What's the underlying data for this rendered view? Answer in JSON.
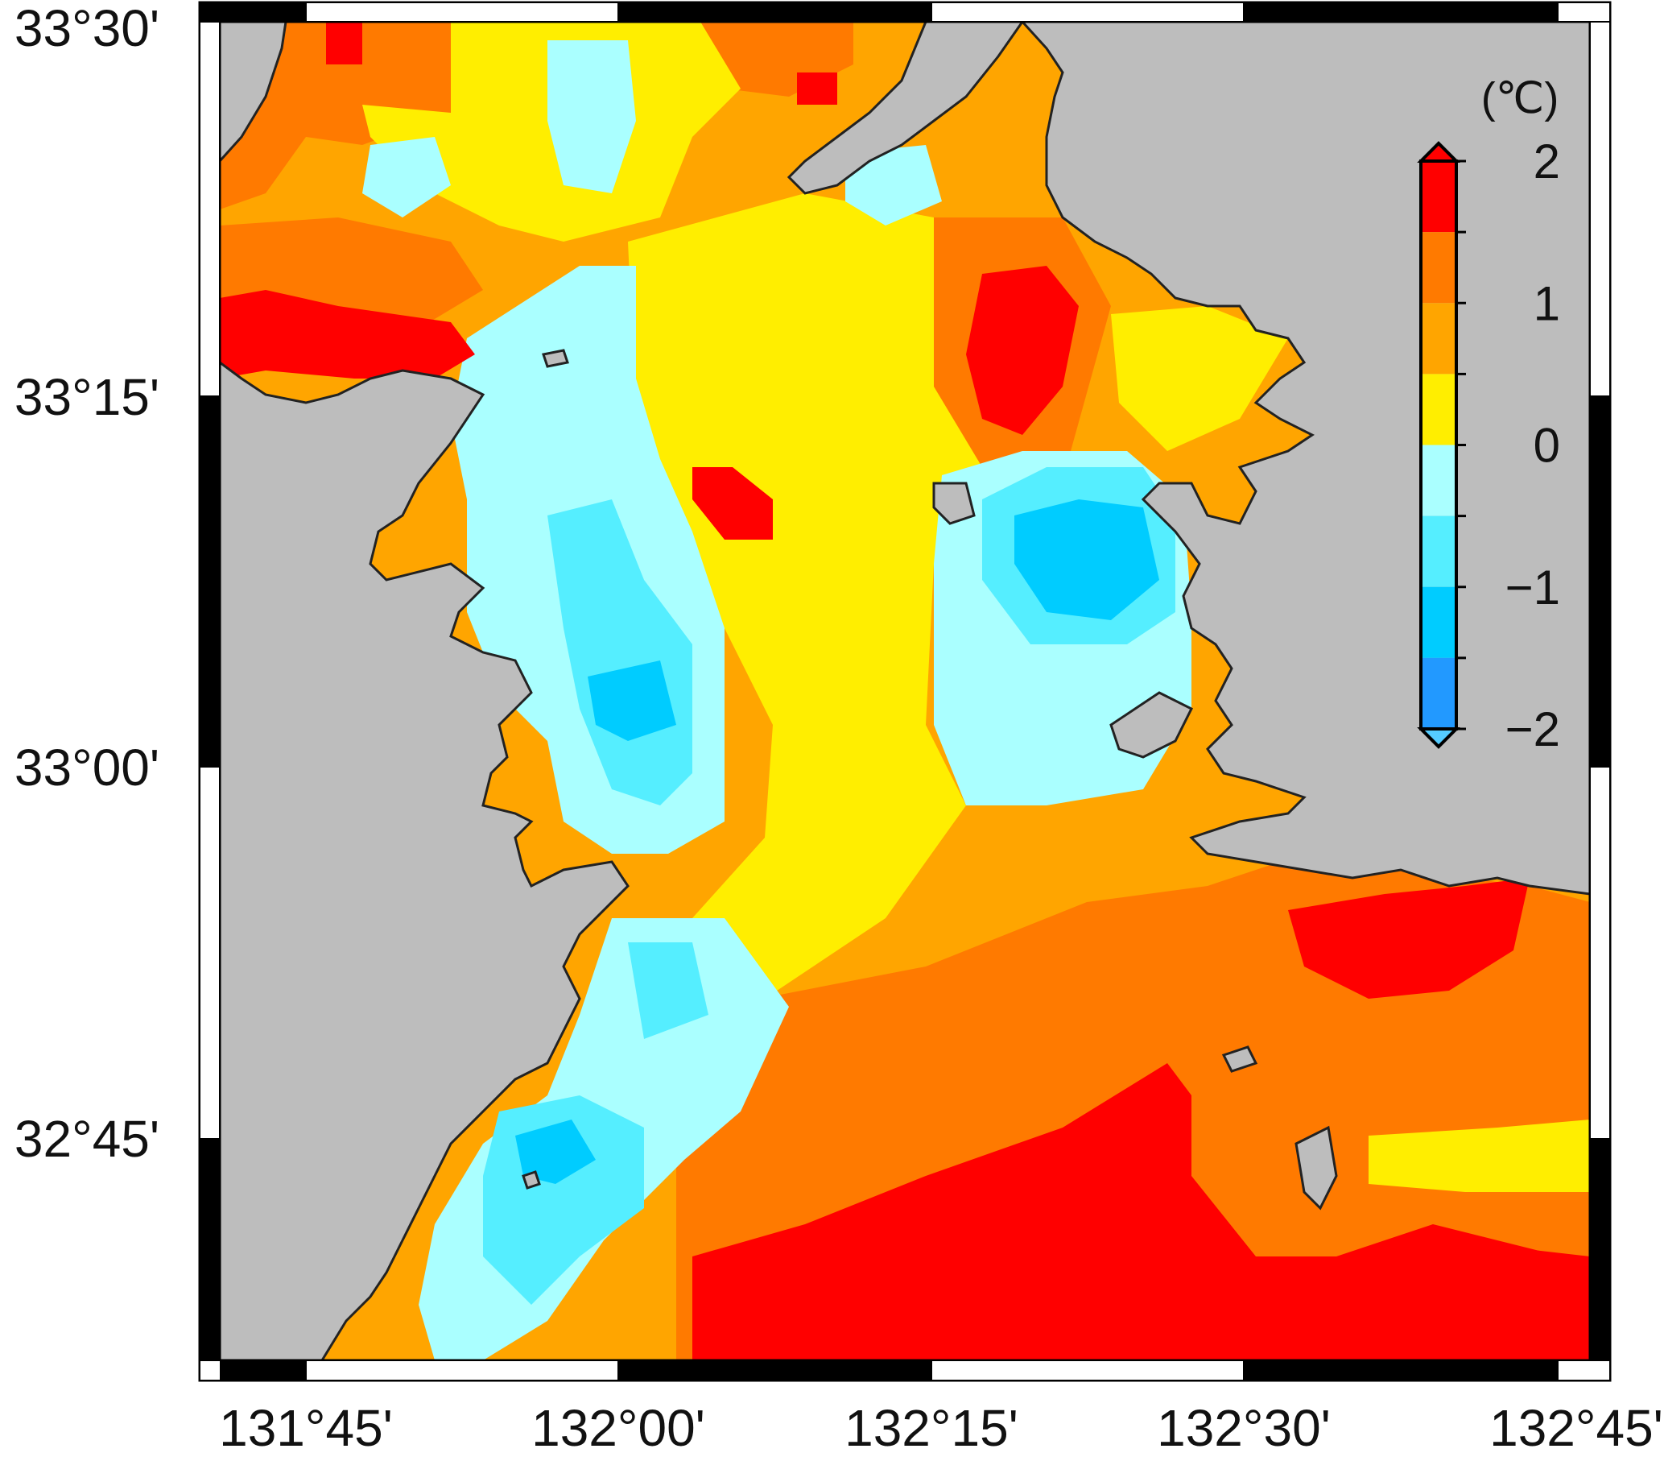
{
  "map": {
    "lat_labels": [
      "33°30'",
      "33°15'",
      "33°00'",
      "32°45'"
    ],
    "lon_labels": [
      "131°45'",
      "132°00'",
      "132°15'",
      "132°30'",
      "132°45'"
    ],
    "land_color": "#bdbdbd",
    "coast_color": "#222222"
  },
  "colorbar": {
    "unit": "(℃)",
    "tick_labels": [
      "2",
      "1",
      "0",
      "−1",
      "−2"
    ],
    "levels": [
      {
        "range": [
          1.5,
          2.0
        ],
        "color": "#ff0000"
      },
      {
        "range": [
          1.0,
          1.5
        ],
        "color": "#ff7a00"
      },
      {
        "range": [
          0.5,
          1.0
        ],
        "color": "#ffa500"
      },
      {
        "range": [
          0.0,
          0.5
        ],
        "color": "#ffee00"
      },
      {
        "range": [
          -0.5,
          0.0
        ],
        "color": "#aaffff"
      },
      {
        "range": [
          -1.0,
          -0.5
        ],
        "color": "#55eeff"
      },
      {
        "range": [
          -1.5,
          -1.0
        ],
        "color": "#00ccff"
      },
      {
        "range": [
          -2.0,
          -1.5
        ],
        "color": "#2299ff"
      }
    ],
    "over_color": "#ff0000",
    "under_color": "#55ccff"
  }
}
